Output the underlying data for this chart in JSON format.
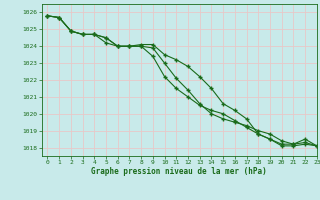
{
  "bg_color": "#c8eaea",
  "grid_color": "#e8c8c8",
  "line_color": "#1a6b1a",
  "marker_color": "#1a6b1a",
  "xlabel": "Graphe pression niveau de la mer (hPa)",
  "xlabel_color": "#1a6b1a",
  "tick_color": "#1a6b1a",
  "ylim": [
    1017.5,
    1026.5
  ],
  "xlim": [
    -0.5,
    23
  ],
  "yticks": [
    1018,
    1019,
    1020,
    1021,
    1022,
    1023,
    1024,
    1025,
    1026
  ],
  "xticks": [
    0,
    1,
    2,
    3,
    4,
    5,
    6,
    7,
    8,
    9,
    10,
    11,
    12,
    13,
    14,
    15,
    16,
    17,
    18,
    19,
    20,
    21,
    22,
    23
  ],
  "series1": [
    1025.8,
    1025.7,
    1024.9,
    1024.7,
    1024.7,
    1024.5,
    1024.0,
    1024.0,
    1024.1,
    1024.1,
    1023.5,
    1023.2,
    1022.8,
    1022.2,
    1021.5,
    1020.6,
    1020.2,
    1019.7,
    1018.8,
    1018.5,
    1018.2,
    1018.2,
    1018.5,
    1018.1
  ],
  "series2": [
    1025.8,
    1025.7,
    1024.9,
    1024.7,
    1024.7,
    1024.2,
    1024.0,
    1024.0,
    1024.0,
    1023.4,
    1022.2,
    1021.5,
    1021.0,
    1020.5,
    1020.2,
    1020.0,
    1019.6,
    1019.2,
    1018.8,
    1018.5,
    1018.1,
    1018.1,
    1018.2,
    1018.1
  ],
  "series3": [
    1025.8,
    1025.7,
    1024.9,
    1024.7,
    1024.7,
    1024.5,
    1024.0,
    1024.0,
    1024.0,
    1023.9,
    1023.0,
    1022.1,
    1021.4,
    1020.6,
    1020.0,
    1019.7,
    1019.5,
    1019.3,
    1019.0,
    1018.8,
    1018.4,
    1018.2,
    1018.3,
    1018.1
  ]
}
